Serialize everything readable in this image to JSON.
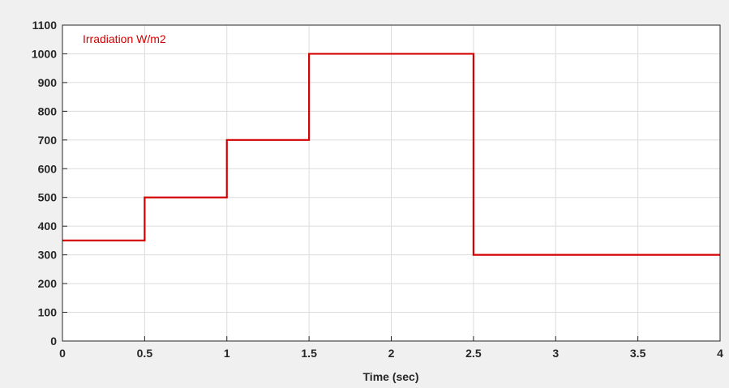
{
  "chart_data": {
    "type": "line",
    "step": true,
    "title": "",
    "xlabel": "Time (sec)",
    "ylabel": "",
    "xlim": [
      0,
      4
    ],
    "ylim": [
      0,
      1100
    ],
    "xticks": [
      0,
      0.5,
      1,
      1.5,
      2,
      2.5,
      3,
      3.5,
      4
    ],
    "xtick_labels": [
      "0",
      "0.5",
      "1",
      "1.5",
      "2",
      "2.5",
      "3",
      "3.5",
      "4"
    ],
    "yticks": [
      0,
      100,
      200,
      300,
      400,
      500,
      600,
      700,
      800,
      900,
      1000,
      1100
    ],
    "ytick_labels": [
      "0",
      "100",
      "200",
      "300",
      "400",
      "500",
      "600",
      "700",
      "800",
      "900",
      "1000",
      "1100"
    ],
    "grid": true,
    "legend_position": "top-left",
    "series": [
      {
        "name": "Irradiation W/m2",
        "color": "#d40000",
        "x": [
          0,
          0.5,
          0.5,
          1,
          1,
          1.5,
          1.5,
          2.5,
          2.5,
          4
        ],
        "y": [
          350,
          350,
          500,
          500,
          700,
          700,
          1000,
          1000,
          300,
          300
        ]
      }
    ]
  }
}
